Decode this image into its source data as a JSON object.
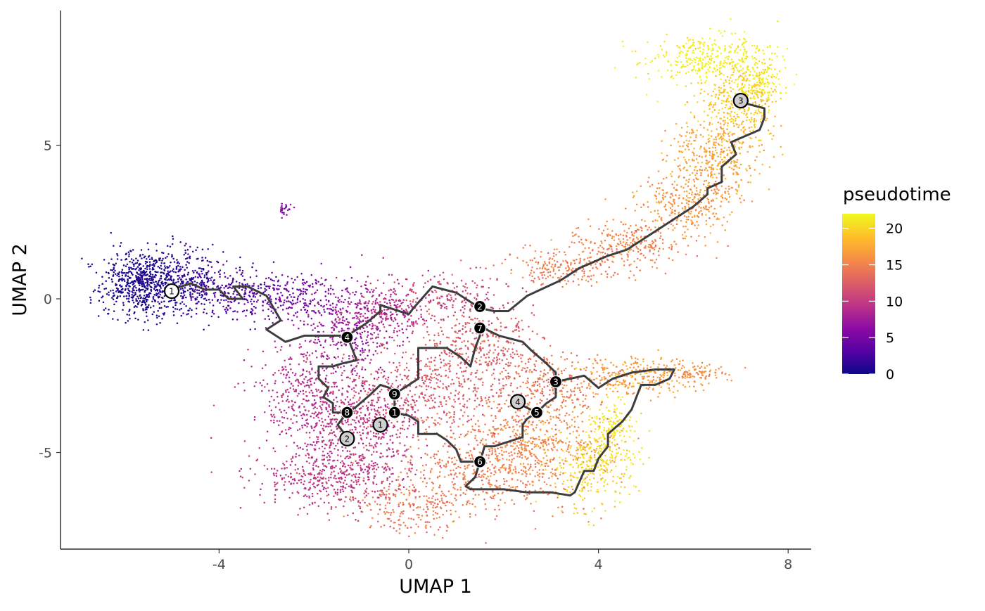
{
  "chart_data": {
    "type": "scatter",
    "title": "",
    "xlabel": "UMAP 1",
    "ylabel": "UMAP 2",
    "xlim": [
      -7.2,
      8.5
    ],
    "ylim": [
      -8.1,
      9.4
    ],
    "x_ticks": [
      -4,
      0,
      4,
      8
    ],
    "y_ticks": [
      -5,
      0,
      5
    ],
    "x_tick_labels": [
      "-4",
      "0",
      "4",
      "8"
    ],
    "y_tick_labels": [
      "-5",
      "0",
      "5"
    ],
    "grid": false,
    "point_size": "small",
    "color_by": "pseudotime",
    "colorbar": {
      "title": "pseudotime",
      "range": [
        0,
        22
      ],
      "ticks": [
        0,
        5,
        10,
        15,
        20
      ],
      "tick_labels": [
        "0",
        "5",
        "10",
        "15",
        "20"
      ],
      "colormap": "plasma",
      "colors": [
        "#0d0887",
        "#5402a3",
        "#8b0aa5",
        "#b93289",
        "#db5c68",
        "#f48849",
        "#febd2a",
        "#f0f921"
      ],
      "legend_position": "right"
    },
    "point_clusters": [
      {
        "cx": -5.6,
        "cy": 0.5,
        "sx": 0.45,
        "sy": 0.55,
        "n": 700,
        "pt": 0.5
      },
      {
        "cx": -4.6,
        "cy": 0.6,
        "sx": 0.35,
        "sy": 0.6,
        "n": 250,
        "pt": 1.5
      },
      {
        "cx": -3.6,
        "cy": 0.2,
        "sx": 0.5,
        "sy": 0.4,
        "n": 250,
        "pt": 3
      },
      {
        "cx": -2.3,
        "cy": 0.1,
        "sx": 0.6,
        "sy": 0.4,
        "n": 200,
        "pt": 5
      },
      {
        "cx": -1.2,
        "cy": -1.0,
        "sx": 0.5,
        "sy": 0.8,
        "n": 300,
        "pt": 7
      },
      {
        "cx": -0.5,
        "cy": -0.5,
        "sx": 0.5,
        "sy": 0.5,
        "n": 250,
        "pt": 9
      },
      {
        "cx": 0.8,
        "cy": 0.0,
        "sx": 0.7,
        "sy": 0.4,
        "n": 200,
        "pt": 11
      },
      {
        "cx": -2.0,
        "cy": -3.2,
        "sx": 0.6,
        "sy": 0.9,
        "n": 450,
        "pt": 9
      },
      {
        "cx": -1.0,
        "cy": -4.0,
        "sx": 0.6,
        "sy": 0.9,
        "n": 450,
        "pt": 10
      },
      {
        "cx": -1.6,
        "cy": -5.8,
        "sx": 0.8,
        "sy": 0.5,
        "n": 450,
        "pt": 10
      },
      {
        "cx": 0.6,
        "cy": -2.8,
        "sx": 0.8,
        "sy": 0.9,
        "n": 500,
        "pt": 12.5
      },
      {
        "cx": 1.6,
        "cy": -1.5,
        "sx": 0.6,
        "sy": 0.6,
        "n": 250,
        "pt": 13
      },
      {
        "cx": 0.0,
        "cy": -6.8,
        "sx": 0.6,
        "sy": 0.4,
        "n": 200,
        "pt": 14.5
      },
      {
        "cx": 1.6,
        "cy": -5.5,
        "sx": 0.9,
        "sy": 0.7,
        "n": 500,
        "pt": 15
      },
      {
        "cx": 2.7,
        "cy": -4.6,
        "sx": 0.7,
        "sy": 0.8,
        "n": 450,
        "pt": 16
      },
      {
        "cx": 3.0,
        "cy": -2.8,
        "sx": 0.6,
        "sy": 0.5,
        "n": 250,
        "pt": 14
      },
      {
        "cx": 4.9,
        "cy": -2.5,
        "sx": 0.7,
        "sy": 0.3,
        "n": 300,
        "pt": 17
      },
      {
        "cx": 6.1,
        "cy": -2.4,
        "sx": 0.3,
        "sy": 0.15,
        "n": 80,
        "pt": 16
      },
      {
        "cx": 3.8,
        "cy": -5.5,
        "sx": 0.4,
        "sy": 0.6,
        "n": 250,
        "pt": 20
      },
      {
        "cx": 4.3,
        "cy": -4.3,
        "sx": 0.3,
        "sy": 0.6,
        "n": 200,
        "pt": 21
      },
      {
        "cx": 3.3,
        "cy": 1.0,
        "sx": 0.6,
        "sy": 0.3,
        "n": 200,
        "pt": 15
      },
      {
        "cx": 4.6,
        "cy": 1.8,
        "sx": 0.6,
        "sy": 0.35,
        "n": 250,
        "pt": 15.5
      },
      {
        "cx": 5.9,
        "cy": 3.2,
        "sx": 0.5,
        "sy": 0.6,
        "n": 350,
        "pt": 16.5
      },
      {
        "cx": 6.5,
        "cy": 4.8,
        "sx": 0.5,
        "sy": 0.6,
        "n": 350,
        "pt": 17.5
      },
      {
        "cx": 7.0,
        "cy": 6.4,
        "sx": 0.4,
        "sy": 0.5,
        "n": 300,
        "pt": 19.5
      },
      {
        "cx": 6.3,
        "cy": 7.8,
        "sx": 0.7,
        "sy": 0.4,
        "n": 350,
        "pt": 21.5
      },
      {
        "cx": 7.4,
        "cy": 7.0,
        "sx": 0.25,
        "sy": 0.4,
        "n": 150,
        "pt": 21
      },
      {
        "cx": -2.6,
        "cy": 2.9,
        "sx": 0.08,
        "sy": 0.1,
        "n": 25,
        "pt": 6
      }
    ],
    "trajectory": [
      [
        [
          -5.0,
          0.3
        ],
        [
          -4.6,
          0.5
        ],
        [
          -4.3,
          0.3
        ],
        [
          -4.0,
          0.3
        ],
        [
          -3.8,
          0.0
        ],
        [
          -3.5,
          0.0
        ],
        [
          -3.7,
          0.4
        ],
        [
          -3.4,
          0.4
        ],
        [
          -3.0,
          0.1
        ],
        [
          -2.7,
          -0.7
        ],
        [
          -3.0,
          -1.0
        ],
        [
          -2.6,
          -1.4
        ],
        [
          -2.2,
          -1.2
        ],
        [
          -1.6,
          -1.2
        ],
        [
          -1.3,
          -1.2
        ],
        [
          -1.1,
          -1.0
        ],
        [
          -0.9,
          -0.8
        ],
        [
          -0.6,
          -0.4
        ],
        [
          -0.6,
          -0.2
        ],
        [
          0.0,
          -0.5
        ],
        [
          0.1,
          -0.3
        ],
        [
          0.5,
          0.4
        ],
        [
          1.0,
          0.2
        ],
        [
          1.5,
          -0.3
        ],
        [
          1.8,
          -0.4
        ],
        [
          2.1,
          -0.4
        ],
        [
          2.5,
          0.1
        ],
        [
          3.2,
          0.6
        ],
        [
          3.6,
          1.0
        ],
        [
          4.2,
          1.4
        ],
        [
          4.6,
          1.6
        ],
        [
          5.0,
          2.0
        ],
        [
          5.3,
          2.3
        ],
        [
          5.6,
          2.6
        ],
        [
          6.0,
          3.0
        ],
        [
          6.3,
          3.4
        ],
        [
          6.3,
          3.6
        ],
        [
          6.6,
          3.8
        ],
        [
          6.6,
          4.3
        ],
        [
          6.9,
          4.7
        ],
        [
          6.8,
          5.1
        ],
        [
          7.4,
          5.5
        ],
        [
          7.5,
          5.9
        ],
        [
          7.5,
          6.2
        ],
        [
          7.0,
          6.4
        ]
      ],
      [
        [
          -1.3,
          -1.2
        ],
        [
          -1.2,
          -1.6
        ],
        [
          -1.1,
          -2.0
        ],
        [
          -1.4,
          -2.1
        ],
        [
          -1.6,
          -2.2
        ],
        [
          -1.9,
          -2.2
        ],
        [
          -1.9,
          -2.6
        ],
        [
          -1.7,
          -2.9
        ],
        [
          -1.8,
          -3.2
        ],
        [
          -1.6,
          -3.4
        ],
        [
          -1.6,
          -3.7
        ],
        [
          -1.3,
          -3.7
        ]
      ],
      [
        [
          -1.3,
          -3.7
        ],
        [
          -1.1,
          -3.5
        ],
        [
          -0.8,
          -3.1
        ],
        [
          -0.6,
          -2.8
        ],
        [
          -0.4,
          -2.9
        ],
        [
          -0.3,
          -3.1
        ]
      ],
      [
        [
          -1.3,
          -3.7
        ],
        [
          -1.5,
          -4.1
        ],
        [
          -1.3,
          -4.5
        ]
      ],
      [
        [
          -0.3,
          -3.1
        ],
        [
          0.2,
          -2.6
        ],
        [
          0.2,
          -2.1
        ],
        [
          0.2,
          -1.6
        ],
        [
          0.8,
          -1.6
        ],
        [
          1.1,
          -1.9
        ],
        [
          1.3,
          -2.2
        ],
        [
          1.4,
          -1.6
        ],
        [
          1.5,
          -1.2
        ],
        [
          1.5,
          -0.9
        ]
      ],
      [
        [
          -0.3,
          -3.1
        ],
        [
          -0.3,
          -3.7
        ]
      ],
      [
        [
          -0.3,
          -3.7
        ],
        [
          0.0,
          -3.8
        ],
        [
          0.2,
          -4.0
        ],
        [
          0.2,
          -4.4
        ],
        [
          0.6,
          -4.4
        ],
        [
          0.8,
          -4.6
        ],
        [
          1.0,
          -4.9
        ],
        [
          1.1,
          -5.3
        ],
        [
          1.4,
          -5.3
        ],
        [
          1.5,
          -5.3
        ]
      ],
      [
        [
          1.5,
          -0.9
        ],
        [
          1.9,
          -1.2
        ],
        [
          2.4,
          -1.4
        ],
        [
          2.6,
          -1.7
        ],
        [
          2.9,
          -2.1
        ],
        [
          3.1,
          -2.4
        ],
        [
          3.1,
          -2.7
        ]
      ],
      [
        [
          3.1,
          -2.7
        ],
        [
          3.4,
          -2.6
        ],
        [
          3.7,
          -2.5
        ],
        [
          4.0,
          -2.9
        ],
        [
          4.3,
          -2.6
        ],
        [
          4.7,
          -2.4
        ],
        [
          5.2,
          -2.3
        ],
        [
          5.6,
          -2.3
        ],
        [
          5.5,
          -2.6
        ],
        [
          5.2,
          -2.8
        ],
        [
          4.9,
          -2.8
        ],
        [
          4.8,
          -3.2
        ],
        [
          4.7,
          -3.6
        ],
        [
          4.5,
          -4.0
        ],
        [
          4.2,
          -4.4
        ],
        [
          4.2,
          -4.8
        ],
        [
          4.1,
          -5.0
        ],
        [
          4.0,
          -5.2
        ],
        [
          3.9,
          -5.6
        ],
        [
          3.7,
          -5.6
        ],
        [
          3.5,
          -6.3
        ],
        [
          3.4,
          -6.4
        ],
        [
          3.0,
          -6.3
        ],
        [
          2.5,
          -6.3
        ],
        [
          2.0,
          -6.2
        ],
        [
          1.6,
          -6.2
        ],
        [
          1.3,
          -6.2
        ],
        [
          1.2,
          -6.1
        ],
        [
          1.4,
          -5.8
        ],
        [
          1.5,
          -5.3
        ]
      ],
      [
        [
          3.1,
          -2.7
        ],
        [
          3.1,
          -3.2
        ],
        [
          2.9,
          -3.4
        ],
        [
          2.7,
          -3.7
        ]
      ],
      [
        [
          2.7,
          -3.7
        ],
        [
          2.5,
          -3.9
        ],
        [
          2.4,
          -4.1
        ],
        [
          2.4,
          -4.5
        ],
        [
          2.2,
          -4.6
        ],
        [
          2.0,
          -4.7
        ],
        [
          1.8,
          -4.8
        ],
        [
          1.6,
          -4.8
        ],
        [
          1.5,
          -5.3
        ]
      ],
      [
        [
          2.7,
          -3.7
        ],
        [
          2.3,
          -3.4
        ]
      ]
    ],
    "nodes": [
      {
        "label": "1",
        "x": -5.0,
        "y": 0.25,
        "kind": "root"
      },
      {
        "label": "4",
        "x": -1.3,
        "y": -1.25,
        "kind": "branch"
      },
      {
        "label": "2",
        "x": 1.5,
        "y": -0.25,
        "kind": "branch"
      },
      {
        "label": "7",
        "x": 1.5,
        "y": -0.95,
        "kind": "branch"
      },
      {
        "label": "3",
        "x": 3.1,
        "y": -2.7,
        "kind": "branch"
      },
      {
        "label": "9",
        "x": -0.3,
        "y": -3.1,
        "kind": "branch"
      },
      {
        "label": "8",
        "x": -1.3,
        "y": -3.7,
        "kind": "branch"
      },
      {
        "label": "1",
        "x": -0.3,
        "y": -3.7,
        "kind": "branch"
      },
      {
        "label": "5",
        "x": 2.7,
        "y": -3.7,
        "kind": "branch"
      },
      {
        "label": "6",
        "x": 1.5,
        "y": -5.3,
        "kind": "branch"
      },
      {
        "label": "2",
        "x": -1.3,
        "y": -4.55,
        "kind": "leaf"
      },
      {
        "label": "1",
        "x": -0.6,
        "y": -4.1,
        "kind": "leaf"
      },
      {
        "label": "4",
        "x": 2.3,
        "y": -3.35,
        "kind": "leaf"
      },
      {
        "label": "3",
        "x": 7.0,
        "y": 6.45,
        "kind": "leaf"
      }
    ]
  }
}
